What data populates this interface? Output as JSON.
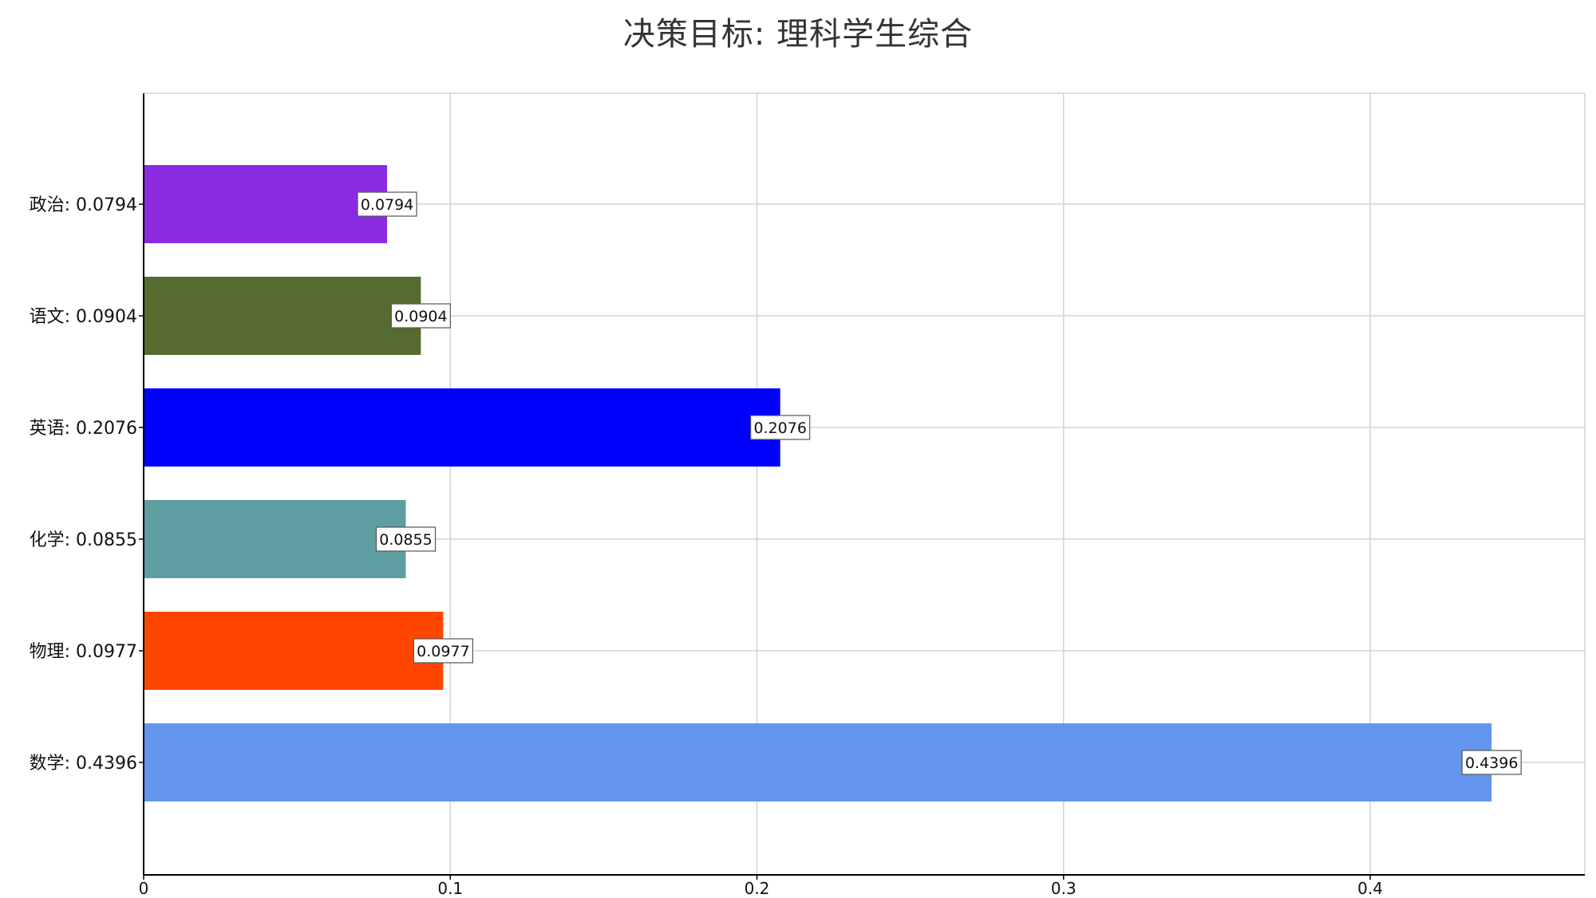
{
  "chart_data": {
    "type": "bar",
    "orientation": "horizontal",
    "title": "决策目标: 理科学生综合",
    "categories": [
      "政治",
      "语文",
      "英语",
      "化学",
      "物理",
      "数学"
    ],
    "category_labels": [
      "政治: 0.0794",
      "语文: 0.0904",
      "英语: 0.2076",
      "化学: 0.0855",
      "物理: 0.0977",
      "数学: 0.4396"
    ],
    "values": [
      0.0794,
      0.0904,
      0.2076,
      0.0855,
      0.0977,
      0.4396
    ],
    "data_labels": [
      "0.0794",
      "0.0904",
      "0.2076",
      "0.0855",
      "0.0977",
      "0.4396"
    ],
    "colors": [
      "#8A2BE2",
      "#556B2F",
      "#0000FF",
      "#5F9EA0",
      "#FF4500",
      "#6495ED"
    ],
    "xlim": [
      0,
      0.47
    ],
    "x_ticks": [
      0,
      0.1,
      0.2,
      0.3,
      0.4
    ],
    "x_tick_labels": [
      "0",
      "0.1",
      "0.2",
      "0.3",
      "0.4"
    ],
    "xlabel": "",
    "ylabel": "",
    "grid": true,
    "legend": "none",
    "grid_color": "#d3d3d3",
    "axis_color": "#000000"
  }
}
